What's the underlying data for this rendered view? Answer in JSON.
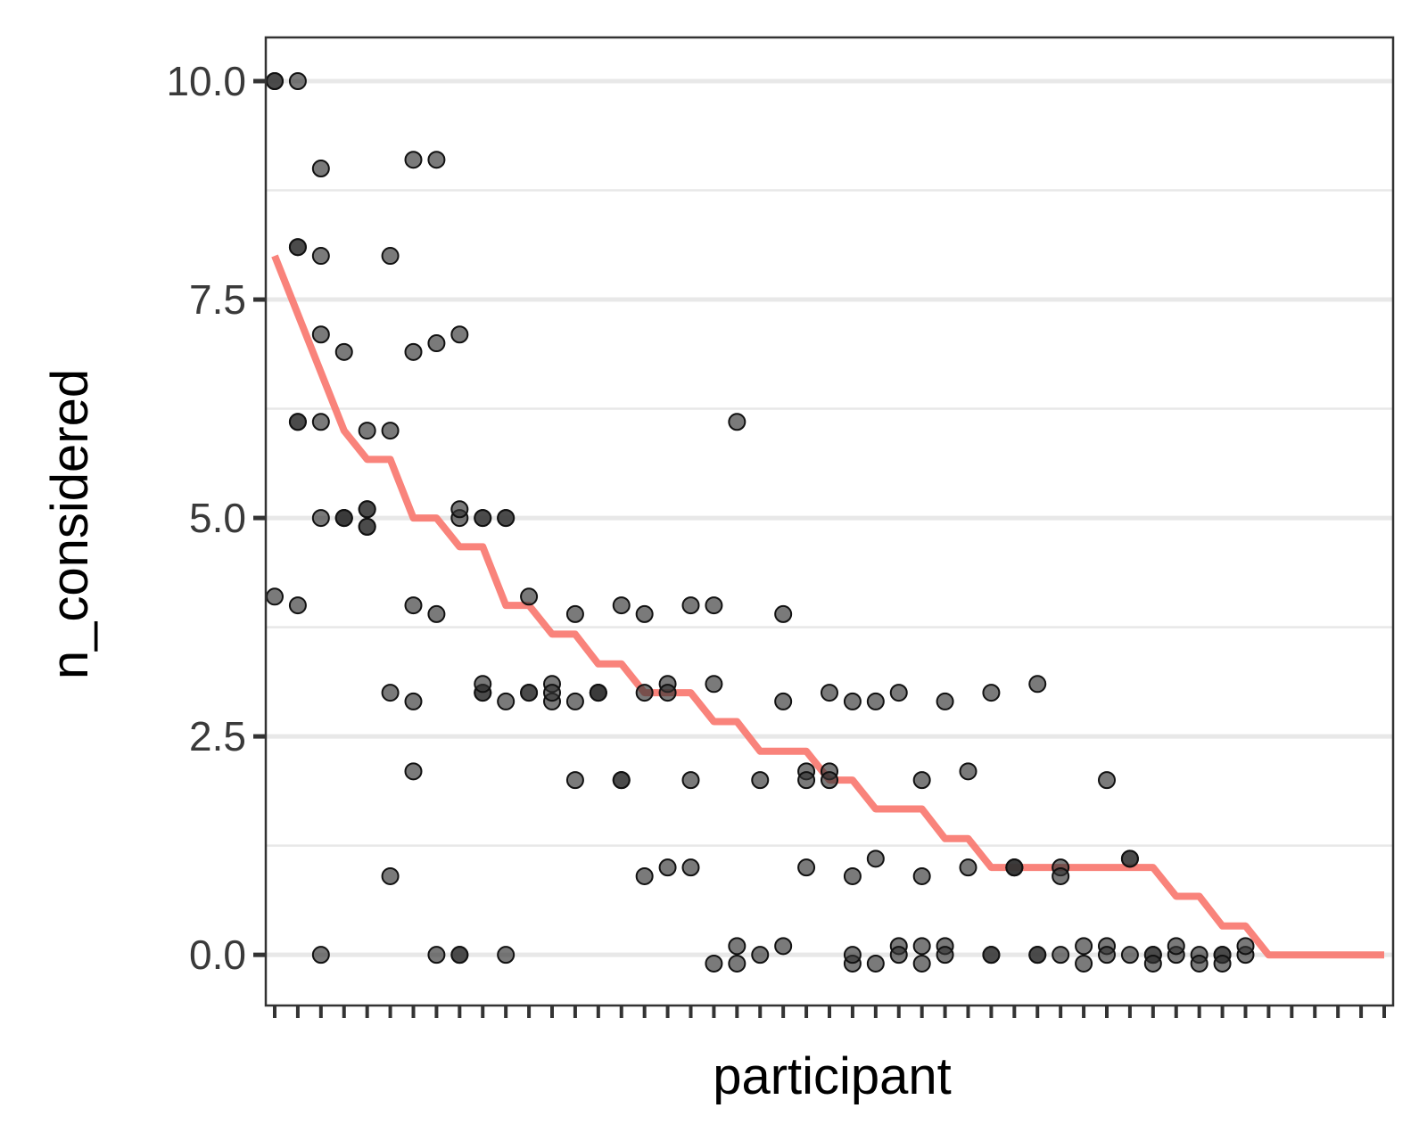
{
  "chart_data": {
    "type": "scatter",
    "title": "",
    "xlabel": "participant",
    "ylabel": "n_considered",
    "ylim": [
      -0.58,
      10.5
    ],
    "yticks": [
      0.0,
      2.5,
      5.0,
      7.5,
      10.0
    ],
    "ytick_labels": [
      "0.0",
      "2.5",
      "5.0",
      "7.5",
      "10.0"
    ],
    "y_minor_grid": [
      1.25,
      3.75,
      6.25,
      8.75
    ],
    "x_categories": 49,
    "xtick_labels_shown": false,
    "grid": "horizontal",
    "legend": "none",
    "colors": {
      "points": "#333333",
      "line": "#f8766d",
      "grid": "#e8e8e8",
      "axis": "#333333"
    },
    "series": [
      {
        "kind": "points",
        "points": [
          [
            1,
            10.0
          ],
          [
            1,
            10.0
          ],
          [
            1,
            4.1
          ],
          [
            2,
            10.0
          ],
          [
            2,
            8.1
          ],
          [
            2,
            8.1
          ],
          [
            2,
            6.1
          ],
          [
            2,
            6.1
          ],
          [
            2,
            4.0
          ],
          [
            3,
            9.0
          ],
          [
            3,
            8.0
          ],
          [
            3,
            7.1
          ],
          [
            3,
            6.1
          ],
          [
            3,
            5.0
          ],
          [
            3,
            0.0
          ],
          [
            4,
            6.9
          ],
          [
            4,
            5.0
          ],
          [
            4,
            5.0
          ],
          [
            4,
            5.0
          ],
          [
            5,
            6.0
          ],
          [
            5,
            5.1
          ],
          [
            5,
            5.1
          ],
          [
            5,
            4.9
          ],
          [
            5,
            4.9
          ],
          [
            6,
            8.0
          ],
          [
            6,
            6.0
          ],
          [
            6,
            3.0
          ],
          [
            6,
            0.9
          ],
          [
            7,
            9.1
          ],
          [
            7,
            6.9
          ],
          [
            7,
            4.0
          ],
          [
            7,
            2.9
          ],
          [
            7,
            2.1
          ],
          [
            8,
            9.1
          ],
          [
            8,
            7.0
          ],
          [
            8,
            3.9
          ],
          [
            8,
            0.0
          ],
          [
            9,
            7.1
          ],
          [
            9,
            5.0
          ],
          [
            9,
            5.1
          ],
          [
            9,
            0.0
          ],
          [
            9,
            0.0
          ],
          [
            10,
            5.0
          ],
          [
            10,
            5.0
          ],
          [
            10,
            3.0
          ],
          [
            10,
            3.0
          ],
          [
            10,
            3.1
          ],
          [
            11,
            5.0
          ],
          [
            11,
            5.0
          ],
          [
            11,
            2.9
          ],
          [
            11,
            0.0
          ],
          [
            12,
            4.1
          ],
          [
            12,
            3.0
          ],
          [
            12,
            3.0
          ],
          [
            13,
            3.1
          ],
          [
            13,
            2.9
          ],
          [
            13,
            3.0
          ],
          [
            14,
            3.9
          ],
          [
            14,
            2.0
          ],
          [
            14,
            2.9
          ],
          [
            15,
            3.0
          ],
          [
            15,
            3.0
          ],
          [
            15,
            3.0
          ],
          [
            16,
            2.0
          ],
          [
            16,
            4.0
          ],
          [
            16,
            2.0
          ],
          [
            17,
            3.9
          ],
          [
            17,
            3.0
          ],
          [
            17,
            0.9
          ],
          [
            18,
            3.1
          ],
          [
            18,
            3.0
          ],
          [
            18,
            1.0
          ],
          [
            19,
            4.0
          ],
          [
            19,
            2.0
          ],
          [
            19,
            1.0
          ],
          [
            20,
            4.0
          ],
          [
            20,
            3.1
          ],
          [
            20,
            -0.1
          ],
          [
            21,
            6.1
          ],
          [
            21,
            -0.1
          ],
          [
            21,
            0.1
          ],
          [
            22,
            2.0
          ],
          [
            22,
            0.0
          ],
          [
            23,
            3.9
          ],
          [
            23,
            2.9
          ],
          [
            23,
            0.1
          ],
          [
            24,
            2.1
          ],
          [
            24,
            2.0
          ],
          [
            24,
            1.0
          ],
          [
            25,
            2.1
          ],
          [
            25,
            2.0
          ],
          [
            25,
            3.0
          ],
          [
            26,
            -0.1
          ],
          [
            26,
            0.9
          ],
          [
            26,
            2.9
          ],
          [
            26,
            0.0
          ],
          [
            27,
            1.1
          ],
          [
            27,
            2.9
          ],
          [
            27,
            -0.1
          ],
          [
            28,
            3.0
          ],
          [
            28,
            0.1
          ],
          [
            28,
            0.0
          ],
          [
            29,
            2.0
          ],
          [
            29,
            0.9
          ],
          [
            29,
            0.1
          ],
          [
            29,
            -0.1
          ],
          [
            30,
            2.9
          ],
          [
            30,
            0.1
          ],
          [
            30,
            0.0
          ],
          [
            31,
            2.1
          ],
          [
            31,
            1.0
          ],
          [
            32,
            3.0
          ],
          [
            32,
            0.0
          ],
          [
            32,
            0.0
          ],
          [
            33,
            1.0
          ],
          [
            33,
            1.0
          ],
          [
            33,
            1.0
          ],
          [
            34,
            3.1
          ],
          [
            34,
            0.0
          ],
          [
            34,
            0.0
          ],
          [
            35,
            1.0
          ],
          [
            35,
            0.9
          ],
          [
            35,
            0.0
          ],
          [
            36,
            0.1
          ],
          [
            36,
            -0.1
          ],
          [
            37,
            2.0
          ],
          [
            37,
            0.1
          ],
          [
            37,
            0.0
          ],
          [
            38,
            1.1
          ],
          [
            38,
            1.1
          ],
          [
            38,
            0.0
          ],
          [
            39,
            0.0
          ],
          [
            39,
            0.0
          ],
          [
            39,
            -0.1
          ],
          [
            40,
            0.0
          ],
          [
            40,
            0.1
          ],
          [
            41,
            0.0
          ],
          [
            41,
            -0.1
          ],
          [
            42,
            0.0
          ],
          [
            42,
            0.0
          ],
          [
            42,
            -0.1
          ],
          [
            43,
            0.0
          ],
          [
            43,
            0.1
          ]
        ]
      },
      {
        "kind": "line",
        "points": [
          [
            1,
            8.0
          ],
          [
            4,
            6.0
          ],
          [
            5,
            5.67
          ],
          [
            6,
            5.67
          ],
          [
            7,
            5.0
          ],
          [
            8,
            5.0
          ],
          [
            9,
            4.67
          ],
          [
            10,
            4.67
          ],
          [
            11,
            4.0
          ],
          [
            12,
            4.0
          ],
          [
            13,
            3.67
          ],
          [
            14,
            3.67
          ],
          [
            15,
            3.33
          ],
          [
            16,
            3.33
          ],
          [
            17,
            3.0
          ],
          [
            18,
            3.0
          ],
          [
            19,
            3.0
          ],
          [
            20,
            2.67
          ],
          [
            21,
            2.67
          ],
          [
            22,
            2.33
          ],
          [
            23,
            2.33
          ],
          [
            24,
            2.33
          ],
          [
            25,
            2.0
          ],
          [
            26,
            2.0
          ],
          [
            27,
            1.67
          ],
          [
            28,
            1.67
          ],
          [
            29,
            1.67
          ],
          [
            30,
            1.33
          ],
          [
            31,
            1.33
          ],
          [
            32,
            1.0
          ],
          [
            33,
            1.0
          ],
          [
            34,
            1.0
          ],
          [
            35,
            1.0
          ],
          [
            36,
            1.0
          ],
          [
            37,
            1.0
          ],
          [
            38,
            1.0
          ],
          [
            39,
            1.0
          ],
          [
            40,
            0.67
          ],
          [
            41,
            0.67
          ],
          [
            42,
            0.33
          ],
          [
            43,
            0.33
          ],
          [
            44,
            0.0
          ],
          [
            49,
            0.0
          ]
        ]
      }
    ]
  }
}
